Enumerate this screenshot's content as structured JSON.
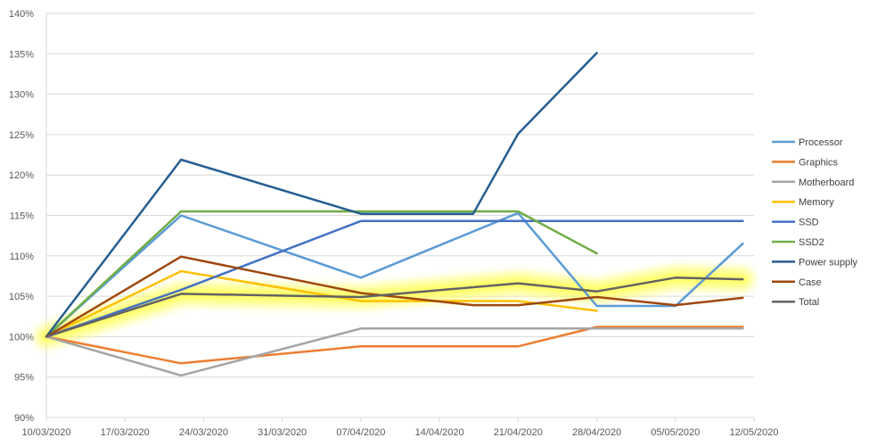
{
  "chart_data": {
    "type": "line",
    "title": "",
    "xlabel": "",
    "ylabel": "",
    "x_ticks": [
      "10/03/2020",
      "17/03/2020",
      "24/03/2020",
      "31/03/2020",
      "07/04/2020",
      "14/04/2020",
      "21/04/2020",
      "28/04/2020",
      "05/05/2020",
      "12/05/2020"
    ],
    "x_range": [
      "2020-03-10",
      "2020-05-12"
    ],
    "y_ticks": [
      "90%",
      "95%",
      "100%",
      "105%",
      "110%",
      "115%",
      "120%",
      "125%",
      "130%",
      "135%",
      "140%"
    ],
    "ylim": [
      90,
      140
    ],
    "y_unit": "%",
    "grid": "horizontal",
    "legend_position": "right",
    "highlighted_series": "Total",
    "highlight_color": "#ffff66",
    "series": [
      {
        "name": "Processor",
        "color": "#5b9bd5",
        "points": [
          [
            "2020-03-10",
            100
          ],
          [
            "2020-03-22",
            115
          ],
          [
            "2020-04-07",
            107.3
          ],
          [
            "2020-04-21",
            115.3
          ],
          [
            "2020-04-28",
            103.8
          ],
          [
            "2020-05-05",
            103.8
          ],
          [
            "2020-05-11",
            111.5
          ]
        ]
      },
      {
        "name": "Graphics",
        "color": "#ed7d31",
        "points": [
          [
            "2020-03-10",
            100
          ],
          [
            "2020-03-22",
            96.7
          ],
          [
            "2020-04-07",
            98.8
          ],
          [
            "2020-04-21",
            98.8
          ],
          [
            "2020-04-28",
            101.2
          ],
          [
            "2020-05-11",
            101.2
          ]
        ]
      },
      {
        "name": "Motherboard",
        "color": "#a5a5a5",
        "points": [
          [
            "2020-03-10",
            100
          ],
          [
            "2020-03-22",
            95.2
          ],
          [
            "2020-04-07",
            101
          ],
          [
            "2020-04-21",
            101
          ],
          [
            "2020-04-28",
            101
          ],
          [
            "2020-05-11",
            101
          ]
        ]
      },
      {
        "name": "Memory",
        "color": "#ffc000",
        "points": [
          [
            "2020-03-10",
            100
          ],
          [
            "2020-03-22",
            108.1
          ],
          [
            "2020-04-07",
            104.4
          ],
          [
            "2020-04-21",
            104.4
          ],
          [
            "2020-04-28",
            103.2
          ]
        ]
      },
      {
        "name": "SSD",
        "color": "#4472c4",
        "points": [
          [
            "2020-03-10",
            100
          ],
          [
            "2020-03-22",
            105.8
          ],
          [
            "2020-04-07",
            114.3
          ],
          [
            "2020-04-21",
            114.3
          ],
          [
            "2020-05-11",
            114.3
          ]
        ]
      },
      {
        "name": "SSD2",
        "color": "#70ad47",
        "points": [
          [
            "2020-03-10",
            100
          ],
          [
            "2020-03-22",
            115.5
          ],
          [
            "2020-04-07",
            115.5
          ],
          [
            "2020-04-21",
            115.5
          ],
          [
            "2020-04-28",
            110.3
          ]
        ]
      },
      {
        "name": "Power supply",
        "color": "#255e91",
        "points": [
          [
            "2020-03-10",
            100
          ],
          [
            "2020-03-22",
            121.9
          ],
          [
            "2020-04-07",
            115.2
          ],
          [
            "2020-04-17",
            115.2
          ],
          [
            "2020-04-21",
            125.1
          ],
          [
            "2020-04-28",
            135.1
          ]
        ]
      },
      {
        "name": "Case",
        "color": "#9e480e",
        "points": [
          [
            "2020-03-10",
            100
          ],
          [
            "2020-03-22",
            109.9
          ],
          [
            "2020-04-07",
            105.4
          ],
          [
            "2020-04-17",
            103.9
          ],
          [
            "2020-04-21",
            103.9
          ],
          [
            "2020-04-28",
            104.9
          ],
          [
            "2020-05-05",
            103.9
          ],
          [
            "2020-05-11",
            104.8
          ]
        ]
      },
      {
        "name": "Total",
        "color": "#636363",
        "points": [
          [
            "2020-03-10",
            100
          ],
          [
            "2020-03-22",
            105.3
          ],
          [
            "2020-04-07",
            104.9
          ],
          [
            "2020-04-21",
            106.6
          ],
          [
            "2020-04-28",
            105.6
          ],
          [
            "2020-05-05",
            107.3
          ],
          [
            "2020-05-11",
            107.1
          ]
        ]
      }
    ]
  }
}
